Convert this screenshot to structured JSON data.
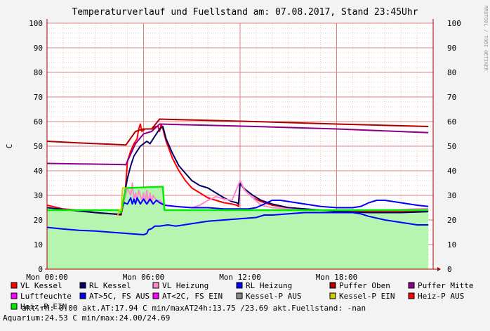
{
  "chart_data": {
    "type": "line",
    "title": "Temperaturverlauf und Fuellstand am: 07.08.2017, Stand 23:45Uhr",
    "ylabel": "C",
    "watermark": "RRDTOOL / TOBI OETIKER",
    "ylim": [
      0,
      100
    ],
    "yticks": [
      0,
      10,
      20,
      30,
      40,
      50,
      60,
      70,
      80,
      90,
      100
    ],
    "xlim": [
      0,
      24
    ],
    "xticks": [
      {
        "x": 0,
        "label": "Mon 00:00"
      },
      {
        "x": 6,
        "label": "Mon 06:00"
      },
      {
        "x": 12,
        "label": "Mon 12:00"
      },
      {
        "x": 18,
        "label": "Mon 18:00"
      }
    ],
    "grid": true,
    "fill_series": {
      "name": "Luftfeuchte",
      "color": "#b5f5b0",
      "points": [
        [
          0,
          24
        ],
        [
          4.5,
          24
        ],
        [
          4.6,
          23
        ],
        [
          4.9,
          33
        ],
        [
          7.2,
          33
        ],
        [
          7.3,
          24
        ],
        [
          23.7,
          24
        ]
      ]
    },
    "series": [
      {
        "name": "VL Kessel",
        "color": "#ff0000",
        "points": [
          [
            0,
            26
          ],
          [
            1,
            24.5
          ],
          [
            2,
            24
          ],
          [
            3,
            23
          ],
          [
            4,
            22.5
          ],
          [
            4.6,
            22
          ],
          [
            4.8,
            28
          ],
          [
            4.9,
            35
          ],
          [
            5.0,
            44
          ],
          [
            5.2,
            48
          ],
          [
            5.4,
            51
          ],
          [
            5.6,
            53
          ],
          [
            5.7,
            57
          ],
          [
            5.8,
            59
          ],
          [
            5.9,
            56
          ],
          [
            6.1,
            57
          ],
          [
            6.3,
            57
          ],
          [
            6.6,
            57
          ],
          [
            6.7,
            58
          ],
          [
            6.9,
            58
          ],
          [
            7.0,
            56
          ],
          [
            7.1,
            59
          ],
          [
            7.2,
            57
          ],
          [
            7.4,
            52
          ],
          [
            7.8,
            45
          ],
          [
            8.2,
            40
          ],
          [
            8.6,
            36
          ],
          [
            9.0,
            33
          ],
          [
            9.5,
            31
          ],
          [
            10,
            29
          ],
          [
            10.5,
            28
          ],
          [
            11,
            27
          ],
          [
            11.5,
            26.5
          ],
          [
            11.8,
            26
          ],
          [
            11.9,
            25.5
          ],
          [
            12.0,
            35
          ],
          [
            12.3,
            32
          ],
          [
            12.8,
            29
          ],
          [
            13.3,
            27.5
          ],
          [
            14,
            26
          ],
          [
            15,
            25
          ],
          [
            16,
            24.5
          ],
          [
            17,
            24
          ],
          [
            18,
            23.8
          ],
          [
            19,
            23.6
          ],
          [
            20,
            23.5
          ],
          [
            21,
            23.4
          ],
          [
            22,
            23.4
          ],
          [
            23,
            23.6
          ],
          [
            23.7,
            23.8
          ]
        ]
      },
      {
        "name": "RL Kessel",
        "color": "#000066",
        "points": [
          [
            0,
            25
          ],
          [
            1,
            24.3
          ],
          [
            2,
            23.6
          ],
          [
            3,
            23
          ],
          [
            4,
            22.5
          ],
          [
            4.6,
            22.3
          ],
          [
            4.8,
            30
          ],
          [
            5.0,
            37
          ],
          [
            5.2,
            42
          ],
          [
            5.4,
            46
          ],
          [
            5.6,
            48
          ],
          [
            5.8,
            50
          ],
          [
            6.0,
            51
          ],
          [
            6.2,
            52
          ],
          [
            6.4,
            51
          ],
          [
            6.6,
            53
          ],
          [
            6.8,
            55
          ],
          [
            7.0,
            57
          ],
          [
            7.2,
            58
          ],
          [
            7.4,
            53
          ],
          [
            7.8,
            47
          ],
          [
            8.2,
            42
          ],
          [
            8.6,
            39
          ],
          [
            9.0,
            36
          ],
          [
            9.5,
            34
          ],
          [
            10,
            33
          ],
          [
            10.5,
            31
          ],
          [
            11,
            29
          ],
          [
            11.5,
            27.5
          ],
          [
            11.8,
            27
          ],
          [
            11.9,
            26.5
          ],
          [
            12.0,
            35
          ],
          [
            12.3,
            32.5
          ],
          [
            12.8,
            30
          ],
          [
            13.3,
            28
          ],
          [
            14,
            26.5
          ],
          [
            15,
            25
          ],
          [
            16,
            24.5
          ],
          [
            17,
            24
          ],
          [
            18,
            23.5
          ],
          [
            19,
            23.2
          ],
          [
            20,
            23
          ],
          [
            21,
            23
          ],
          [
            22,
            23
          ],
          [
            23,
            23.2
          ],
          [
            23.7,
            23.4
          ]
        ]
      },
      {
        "name": "VL Heizung",
        "color": "#ff88cc",
        "points": [
          [
            0,
            24
          ],
          [
            4.5,
            24
          ],
          [
            4.6,
            24
          ],
          [
            4.8,
            28
          ],
          [
            5.0,
            33
          ],
          [
            5.2,
            30
          ],
          [
            5.3,
            35
          ],
          [
            5.4,
            28
          ],
          [
            5.5,
            31
          ],
          [
            5.6,
            28
          ],
          [
            5.7,
            32
          ],
          [
            5.9,
            28
          ],
          [
            6.0,
            31
          ],
          [
            6.1,
            27
          ],
          [
            6.2,
            32
          ],
          [
            6.3,
            27
          ],
          [
            6.4,
            31
          ],
          [
            6.5,
            27
          ],
          [
            6.6,
            30
          ],
          [
            6.8,
            28
          ],
          [
            7.0,
            28
          ],
          [
            7.3,
            26
          ],
          [
            8,
            25.5
          ],
          [
            9,
            25
          ],
          [
            9.5,
            26
          ],
          [
            10,
            28
          ],
          [
            10.5,
            29.5
          ],
          [
            11,
            28.5
          ],
          [
            11.5,
            28
          ],
          [
            12.0,
            36
          ],
          [
            12.3,
            32
          ],
          [
            12.8,
            29
          ],
          [
            13.3,
            26
          ],
          [
            14,
            25
          ],
          [
            15,
            24.5
          ],
          [
            16,
            24
          ],
          [
            17,
            24
          ],
          [
            18,
            24
          ],
          [
            19,
            24
          ],
          [
            20,
            24
          ],
          [
            21,
            24
          ],
          [
            22,
            24.2
          ],
          [
            23,
            24.5
          ],
          [
            23.7,
            24.6
          ]
        ]
      },
      {
        "name": "RL Heizung",
        "color": "#0000ff",
        "points": [
          [
            0,
            17
          ],
          [
            1,
            16.3
          ],
          [
            2,
            15.8
          ],
          [
            3,
            15.5
          ],
          [
            4,
            15
          ],
          [
            5,
            14.5
          ],
          [
            6,
            14
          ],
          [
            6.2,
            14.5
          ],
          [
            6.3,
            16
          ],
          [
            6.5,
            16.5
          ],
          [
            6.7,
            17.5
          ],
          [
            7.0,
            17.5
          ],
          [
            7.5,
            18
          ],
          [
            8,
            17.5
          ],
          [
            8.5,
            18
          ],
          [
            9,
            18.5
          ],
          [
            10,
            19.5
          ],
          [
            11,
            20
          ],
          [
            12,
            20.5
          ],
          [
            13,
            21
          ],
          [
            13.5,
            22
          ],
          [
            14,
            22
          ],
          [
            15,
            22.5
          ],
          [
            16,
            23
          ],
          [
            17,
            23
          ],
          [
            18,
            23
          ],
          [
            19,
            23
          ],
          [
            19.5,
            22.5
          ],
          [
            20,
            21.5
          ],
          [
            21,
            20
          ],
          [
            22,
            19
          ],
          [
            23,
            18
          ],
          [
            23.7,
            18
          ]
        ]
      },
      {
        "name": "AT>5C, FS AUS",
        "color": "#0000ff",
        "points": [
          [
            0,
            24
          ],
          [
            1,
            24
          ],
          [
            2,
            24
          ],
          [
            3,
            24
          ],
          [
            4,
            24
          ],
          [
            4.6,
            24
          ],
          [
            4.8,
            27
          ],
          [
            5.0,
            26.5
          ],
          [
            5.2,
            29
          ],
          [
            5.3,
            26.5
          ],
          [
            5.4,
            28.5
          ],
          [
            5.5,
            26.5
          ],
          [
            5.6,
            29
          ],
          [
            5.8,
            26.5
          ],
          [
            6.0,
            28.5
          ],
          [
            6.2,
            26.5
          ],
          [
            6.4,
            28.5
          ],
          [
            6.6,
            26.5
          ],
          [
            6.8,
            28
          ],
          [
            7.0,
            27
          ],
          [
            7.3,
            26
          ],
          [
            8,
            25.5
          ],
          [
            9,
            25
          ],
          [
            10,
            25
          ],
          [
            11,
            24.5
          ],
          [
            12,
            24.5
          ],
          [
            12.5,
            24.5
          ],
          [
            13,
            25
          ],
          [
            13.5,
            26.5
          ],
          [
            14,
            28
          ],
          [
            14.5,
            28
          ],
          [
            15,
            27.5
          ],
          [
            16,
            26.5
          ],
          [
            17,
            25.5
          ],
          [
            18,
            25
          ],
          [
            19,
            25
          ],
          [
            19.5,
            25.5
          ],
          [
            20,
            27
          ],
          [
            20.5,
            28
          ],
          [
            21,
            28
          ],
          [
            22,
            27
          ],
          [
            23,
            26
          ],
          [
            23.7,
            25.5
          ]
        ]
      },
      {
        "name": "Puffer Oben",
        "color": "#aa0000",
        "points": [
          [
            0,
            52
          ],
          [
            2,
            51.3
          ],
          [
            4,
            50.8
          ],
          [
            4.9,
            50.5
          ],
          [
            5.5,
            56
          ],
          [
            6,
            57
          ],
          [
            6.5,
            57
          ],
          [
            7,
            61
          ],
          [
            10,
            60.5
          ],
          [
            14,
            59.8
          ],
          [
            18,
            59
          ],
          [
            23.7,
            58
          ]
        ]
      },
      {
        "name": "Puffer Mitte",
        "color": "#880088",
        "points": [
          [
            0,
            43
          ],
          [
            2,
            42.8
          ],
          [
            4,
            42.6
          ],
          [
            4.9,
            42.5
          ],
          [
            5.5,
            51
          ],
          [
            6,
            55
          ],
          [
            6.5,
            56
          ],
          [
            7,
            59
          ],
          [
            10,
            58.5
          ],
          [
            14,
            57.8
          ],
          [
            18,
            57
          ],
          [
            23.7,
            55.5
          ]
        ]
      },
      {
        "name": "Heiz-P EIN",
        "color": "#00ee00",
        "points": [
          [
            0,
            24
          ],
          [
            4.5,
            24
          ],
          [
            4.6,
            23
          ],
          [
            4.9,
            33
          ],
          [
            7.2,
            33.5
          ],
          [
            7.3,
            24
          ],
          [
            23.7,
            24
          ]
        ]
      },
      {
        "name": "Kessel-P EIN",
        "color": "#cccc00",
        "points": [
          [
            4.4,
            22
          ],
          [
            4.5,
            24
          ],
          [
            4.6,
            24
          ],
          [
            4.7,
            33
          ],
          [
            4.9,
            33
          ]
        ]
      }
    ]
  },
  "legend": [
    {
      "label": "VL Kessel",
      "color": "#ff0000"
    },
    {
      "label": "RL Kessel",
      "color": "#000066"
    },
    {
      "label": "VL Heizung",
      "color": "#ff88cc"
    },
    {
      "label": "RL Heizung",
      "color": "#0000ff"
    },
    {
      "label": "Puffer Oben",
      "color": "#aa0000"
    },
    {
      "label": "Puffer Mitte",
      "color": "#880088"
    },
    {
      "label": "Luftfeuchte",
      "color": "#ff00ff"
    },
    {
      "label": "AT>5C, FS AUS",
      "color": "#0000ff"
    },
    {
      "label": "AT<2C, FS EIN",
      "color": "#ff00ff"
    },
    {
      "label": "Kessel-P AUS",
      "color": "#888888"
    },
    {
      "label": "Kessel-P EIN",
      "color": "#cccc00"
    },
    {
      "label": "Heiz-P AUS",
      "color": "#ff0000"
    },
    {
      "label": "Heiz-P EIN",
      "color": "#00ee00"
    }
  ],
  "status": {
    "line3_rest": "akt.rH: 0.00   akt.AT:17.94 C   min/maxAT24h:13.75 /23.69   akt.Fuellstand: -nan",
    "line4": "Aquarium:24.53 C  min/max:24.00/24.69"
  }
}
